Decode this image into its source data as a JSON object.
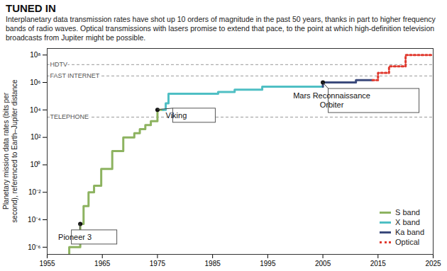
{
  "chart_data": {
    "type": "line",
    "title": "TUNED IN",
    "subtitle": "Interplanetary data transmission rates have shot up 10 orders of magnitude in the past 50 years, thanks in part to higher frequency bands of radio waves. Optical transmissions with lasers promise to extend that pace, to the point at which high-definition television broadcasts from Jupiter might be possible.",
    "ylabel": "Planetary mission data rates (bits per second), referenced to Earth–Jupiter distance",
    "xlim": [
      1955,
      2025
    ],
    "xticks": [
      1955,
      1965,
      1975,
      1985,
      1995,
      2005,
      2015,
      2025
    ],
    "ylim": [
      3e-07,
      300000000.0
    ],
    "yticks": [
      {
        "value": 1e-06,
        "label": "10⁻⁶"
      },
      {
        "value": 0.0001,
        "label": "10⁻⁴"
      },
      {
        "value": 0.01,
        "label": "10⁻²"
      },
      {
        "value": 1,
        "label": "10⁰"
      },
      {
        "value": 100,
        "label": "10²"
      },
      {
        "value": 10000,
        "label": "10⁴"
      },
      {
        "value": 1000000,
        "label": "10⁶"
      },
      {
        "value": 100000000,
        "label": "10⁸"
      }
    ],
    "log": "y",
    "grid": false,
    "legend": "bottom-right",
    "series": [
      {
        "name": "S band",
        "color": "#8db360",
        "line_style": "solid",
        "x": [
          1959,
          1959,
          1961,
          1961.6,
          1962.5,
          1963.5,
          1964.8,
          1966.8,
          1968.8,
          1970.8,
          1971.8,
          1972.8,
          1973.8,
          1975,
          1976
        ],
        "values": [
          3e-07,
          1e-06,
          5e-05,
          0.001,
          0.01,
          0.03,
          0.5,
          10,
          100,
          200,
          400,
          800,
          1500,
          10000,
          10000
        ]
      },
      {
        "name": "X band",
        "color": "#4fbfc4",
        "line_style": "solid",
        "x": [
          1976,
          1976.5,
          1977,
          1986,
          1989,
          1994,
          2005
        ],
        "values": [
          10000,
          30000,
          150000,
          200000,
          300000,
          500000,
          500000
        ]
      },
      {
        "name": "Ka band",
        "color": "#3b4a7c",
        "line_style": "solid",
        "x": [
          2005,
          2005,
          2011,
          2014
        ],
        "values": [
          500000,
          1000000,
          1500000,
          1500000
        ]
      },
      {
        "name": "Optical",
        "color": "#e0392e",
        "line_style": "dotted",
        "x": [
          2014,
          2015,
          2017,
          2020,
          2025
        ],
        "values": [
          1500000,
          5000000,
          15000000,
          100000000,
          100000000
        ]
      }
    ],
    "reference_lines": [
      {
        "label": "HDTV",
        "value": 20000000
      },
      {
        "label": "FAST INTERNET",
        "value": 3000000
      },
      {
        "label": "TELEPHONE",
        "value": 3000
      }
    ],
    "annotations": [
      {
        "text": "Pioneer 3",
        "x": 1961,
        "y": 5e-05
      },
      {
        "text": "Viking",
        "x": 1975,
        "y": 10000
      },
      {
        "text": "Mars Reconnaissance Orbiter",
        "x": 2005,
        "y": 1000000
      }
    ]
  }
}
